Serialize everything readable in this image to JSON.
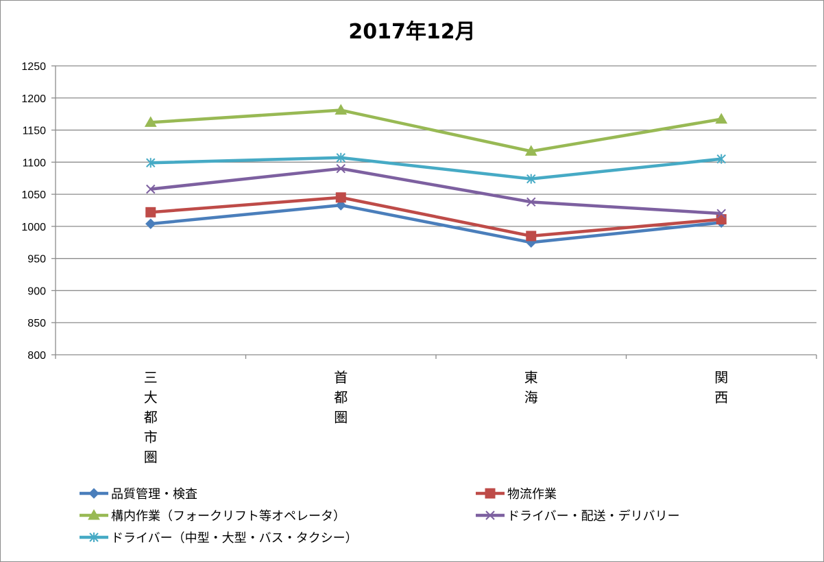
{
  "chart_data": {
    "type": "line",
    "title": "2017年12月",
    "categories": [
      "三大都市圏",
      "首都圏",
      "東海",
      "関西"
    ],
    "y_ticks": [
      "800",
      "850",
      "900",
      "950",
      "1000",
      "1050",
      "1100",
      "1150",
      "1200",
      "1250"
    ],
    "ylim": [
      800,
      1250
    ],
    "grid": "horizontal",
    "legend_position": "bottom",
    "series": [
      {
        "name": "品質管理・検査",
        "values": [
          1004,
          1033,
          975,
          1006
        ],
        "color": "#4a7ebb",
        "marker": "diamond"
      },
      {
        "name": "物流作業",
        "values": [
          1022,
          1045,
          985,
          1011
        ],
        "color": "#be4b48",
        "marker": "square"
      },
      {
        "name": "構内作業（フォークリフト等オペレータ）",
        "values": [
          1162,
          1181,
          1117,
          1167
        ],
        "color": "#98b954",
        "marker": "triangle"
      },
      {
        "name": "ドライバー・配送・デリバリー",
        "values": [
          1058,
          1090,
          1038,
          1020
        ],
        "color": "#7d60a0",
        "marker": "x"
      },
      {
        "name": "ドライバー（中型・大型・バス・タクシー）",
        "values": [
          1099,
          1107,
          1074,
          1105
        ],
        "color": "#46aac5",
        "marker": "star"
      }
    ]
  }
}
